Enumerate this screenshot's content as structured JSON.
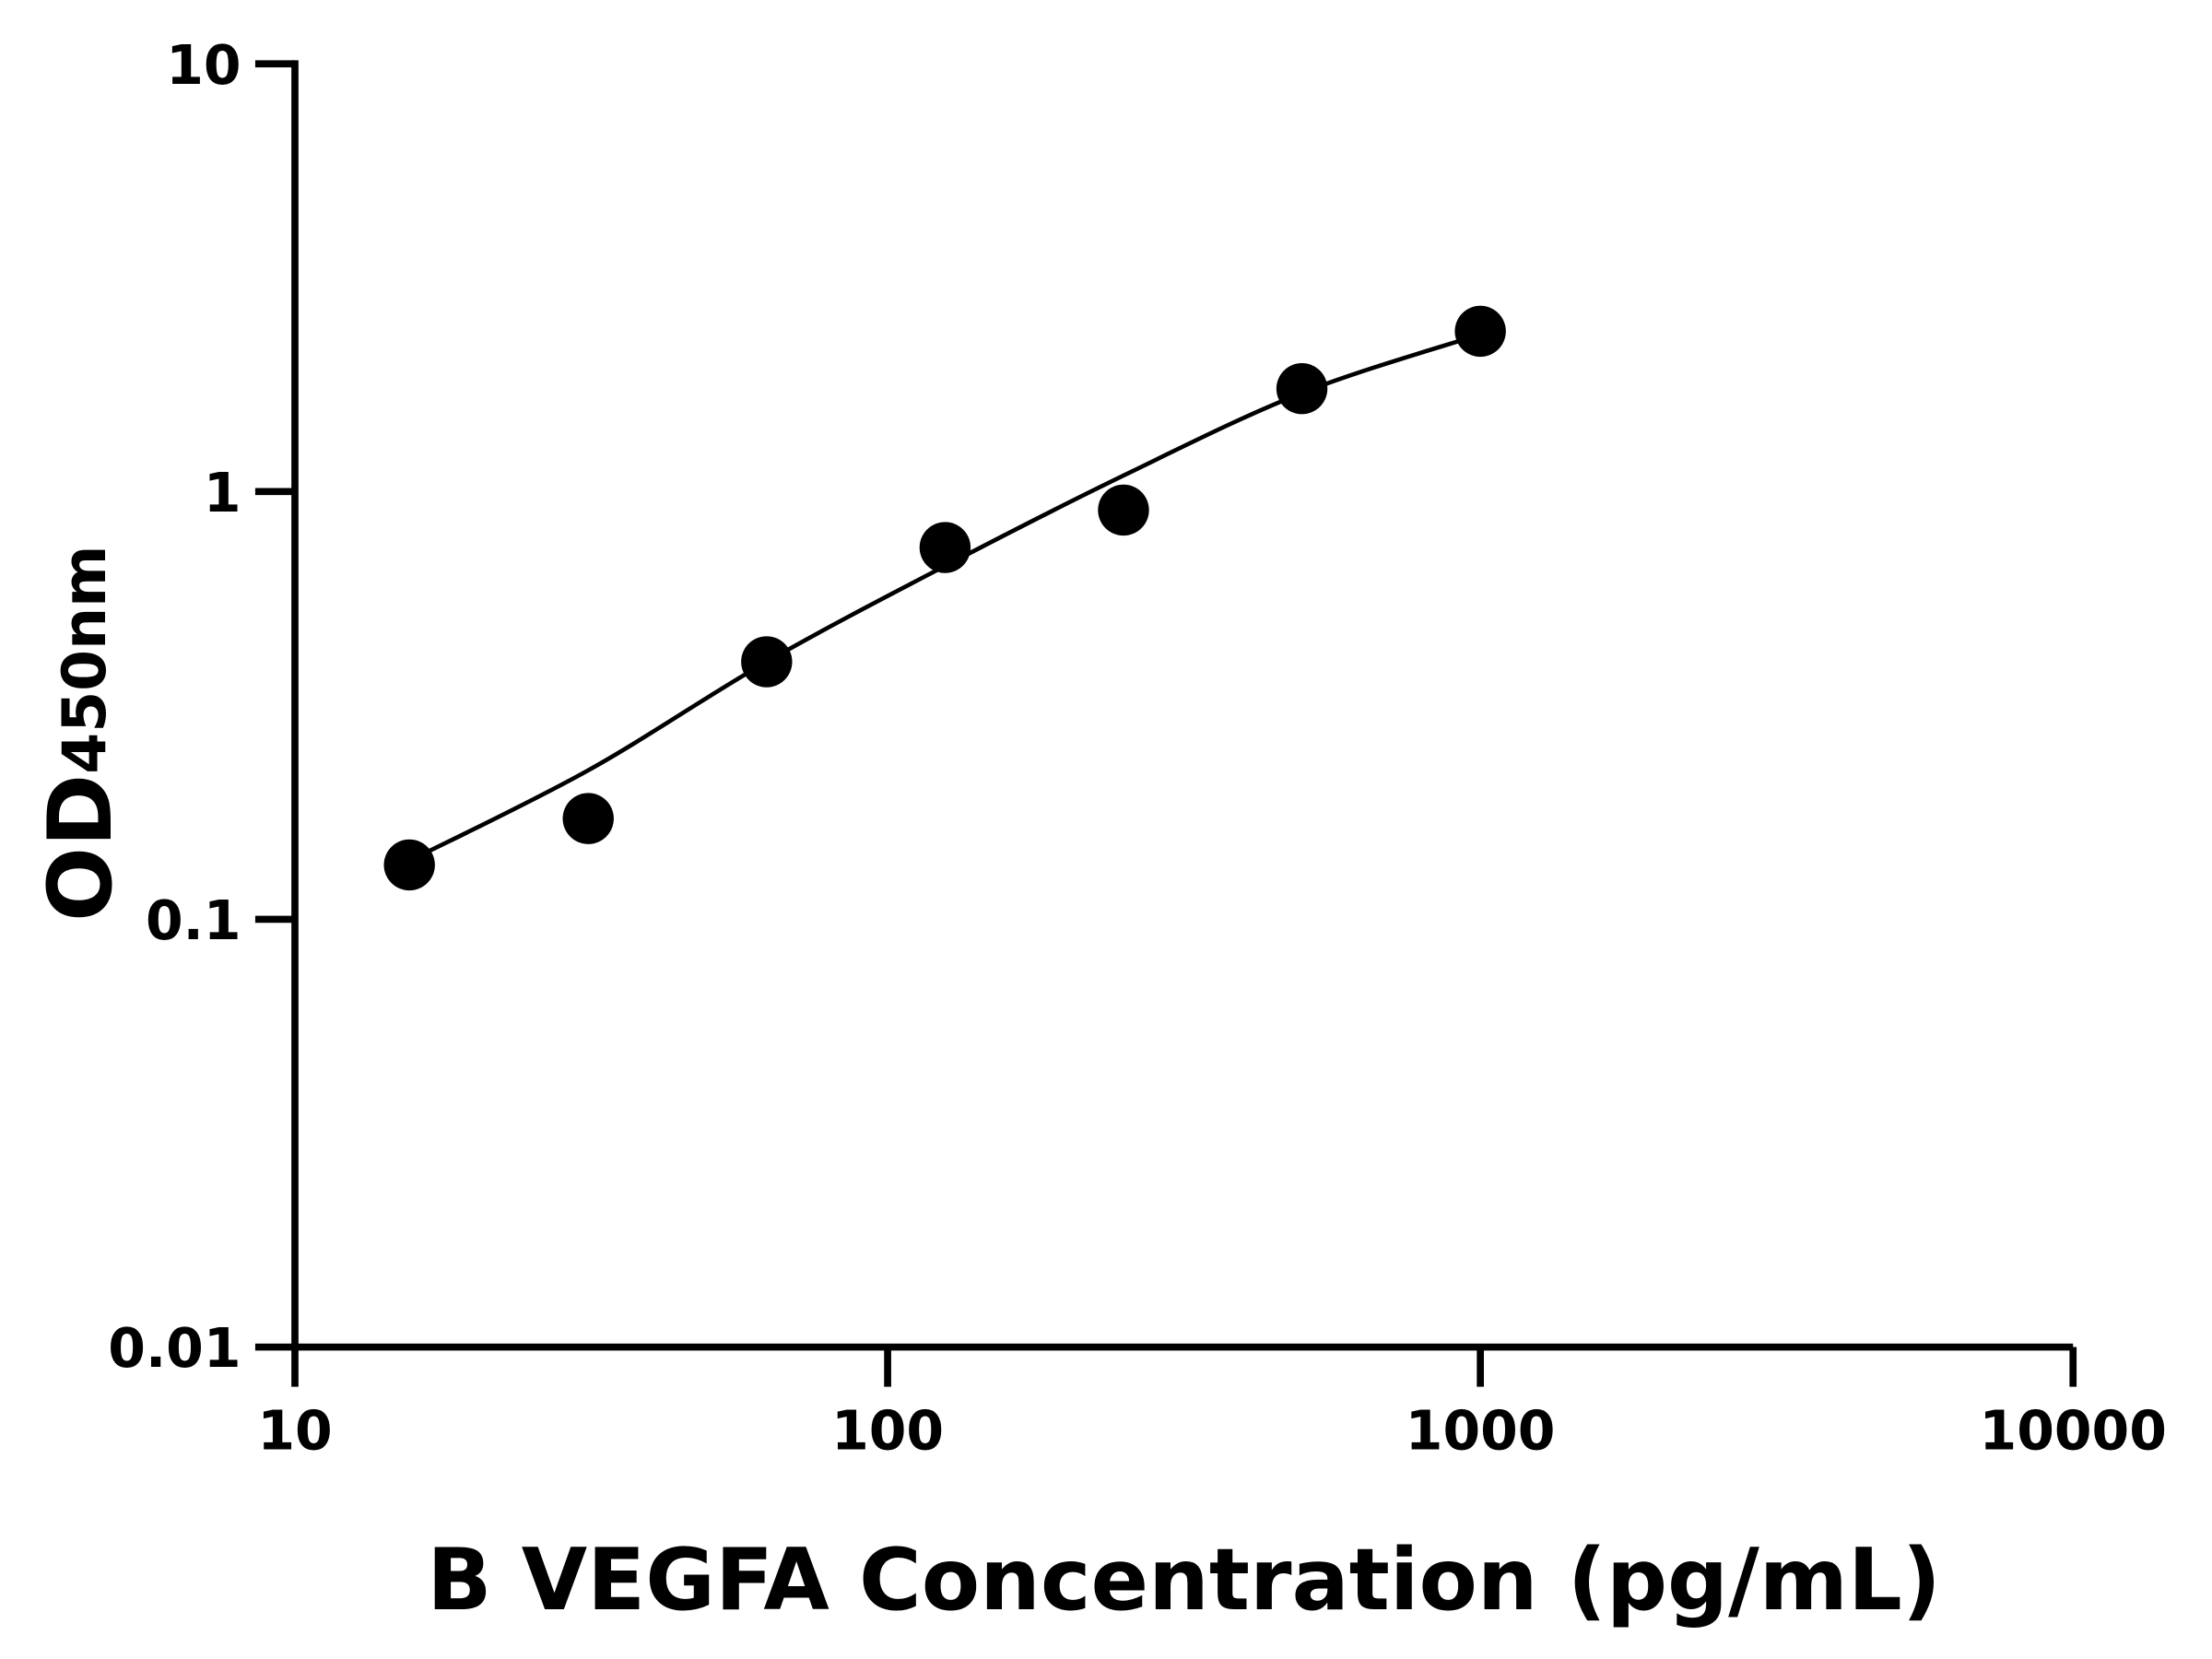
{
  "chart_data": {
    "type": "scatter",
    "title": "",
    "xlabel": "B VEGFA Concentration (pg/mL)",
    "ylabel": "OD",
    "ylabel_subscript": "450nm",
    "x_scale": "log",
    "y_scale": "log",
    "xlim": [
      10,
      10000
    ],
    "ylim": [
      0.01,
      10
    ],
    "x_ticks": [
      "10",
      "100",
      "1000",
      "10000"
    ],
    "y_ticks": [
      "0.01",
      "0.1",
      "1",
      "10"
    ],
    "grid": false,
    "legend": "none",
    "colors": {
      "points": "#000000",
      "curve": "#000000",
      "axes": "#000000"
    },
    "series": [
      {
        "points": {
          "x": [
            15.6,
            31.25,
            62.5,
            125,
            250,
            500,
            1000
          ],
          "y": [
            0.134,
            0.172,
            0.4,
            0.74,
            0.905,
            1.74,
            2.37
          ]
        },
        "fit_curve": {
          "x": [
            15.6,
            31.25,
            62.5,
            125,
            250,
            500,
            1000
          ],
          "y": [
            0.137,
            0.223,
            0.4,
            0.67,
            1.09,
            1.7,
            2.33
          ]
        }
      }
    ]
  }
}
